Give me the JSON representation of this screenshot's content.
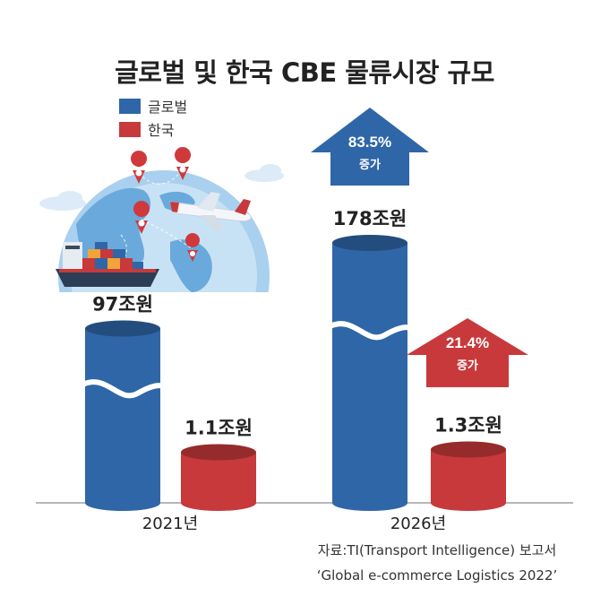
{
  "chart_data": {
    "type": "bar",
    "title": "글로벌 및 한국 CBE 물류시장 규모",
    "categories": [
      "2021년",
      "2026년"
    ],
    "series": [
      {
        "name": "글로벌",
        "values": [
          97,
          178
        ],
        "labels": [
          "97조원",
          "178조원"
        ],
        "color": "#2f66a8"
      },
      {
        "name": "한국",
        "values": [
          1.1,
          1.3
        ],
        "labels": [
          "1.1조원",
          "1.3조원"
        ],
        "color": "#c8393b"
      }
    ],
    "unit": "조원",
    "annotations": [
      {
        "series": "글로벌",
        "text": "83.5%",
        "sub": "증가",
        "color": "#2f66a8"
      },
      {
        "series": "한국",
        "text": "21.4%",
        "sub": "증가",
        "color": "#c8393b"
      }
    ],
    "legend_position": "top-left"
  },
  "source_line1": "자료:TI(Transport Intelligence) 보고서",
  "source_line2": "‘Global e-commerce Logistics 2022’"
}
